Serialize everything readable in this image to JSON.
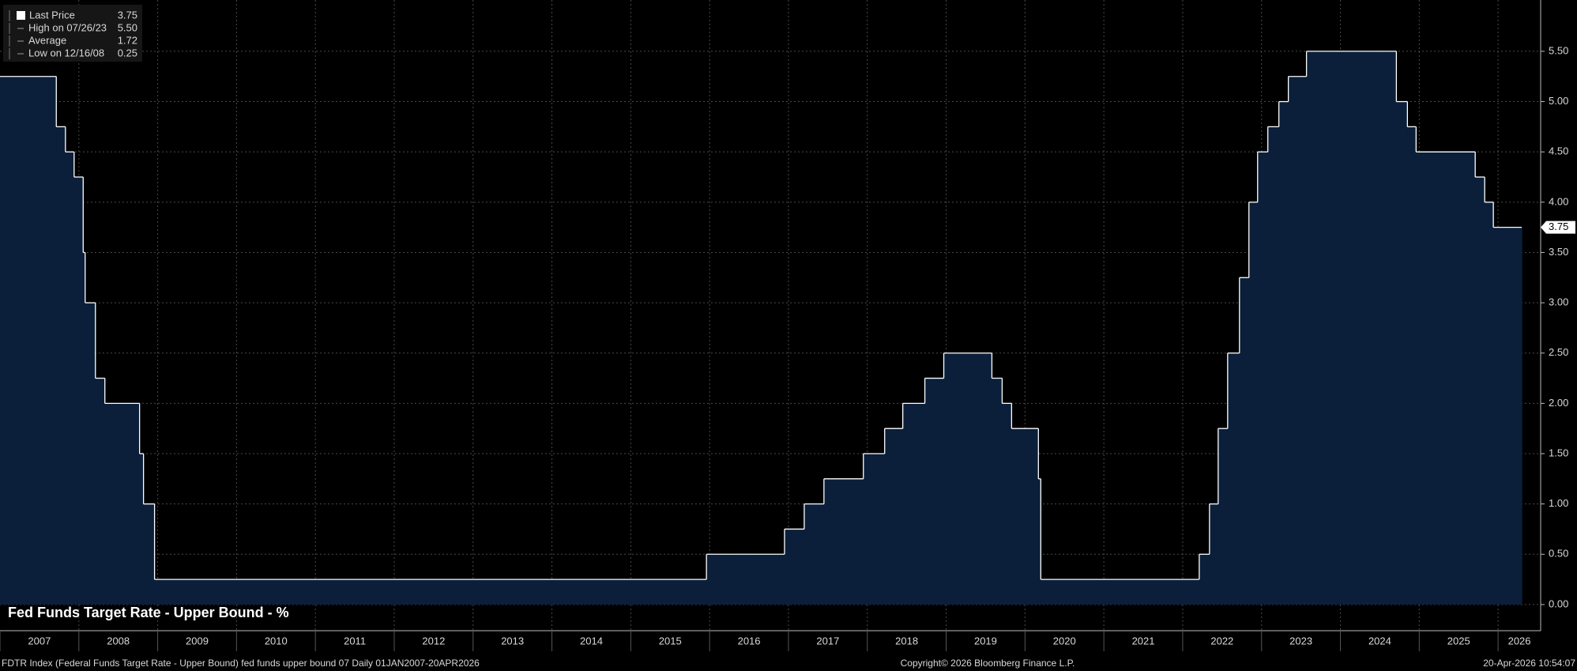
{
  "chart_data": {
    "type": "area",
    "step": "post",
    "title": "Fed Funds Target Rate - Upper Bound - %",
    "footer_left": "FDTR Index (Federal Funds Target Rate - Upper Bound) fed funds upper bound 07 Daily 01JAN2007-20APR2026",
    "footer_center": "Copyright© 2026 Bloomberg Finance L.P.",
    "footer_right": "20-Apr-2026 10:54:07",
    "legend": [
      {
        "label": "Last Price",
        "value": "3.75"
      },
      {
        "label": "High on 07/26/23",
        "value": "5.50"
      },
      {
        "label": "Average",
        "value": "1.72"
      },
      {
        "label": "Low on 12/16/08",
        "value": "0.25"
      }
    ],
    "series": [
      {
        "name": "Last Price",
        "color": "#ffffff",
        "fill": "#0b1f3a",
        "x": [
          2007.0,
          2007.714,
          2007.83,
          2007.94,
          2008.055,
          2008.08,
          2008.21,
          2008.33,
          2008.77,
          2008.82,
          2008.96,
          2015.96,
          2016.95,
          2017.2,
          2017.45,
          2017.95,
          2018.22,
          2018.45,
          2018.73,
          2018.97,
          2019.58,
          2019.71,
          2019.83,
          2020.17,
          2020.2,
          2022.21,
          2022.34,
          2022.45,
          2022.57,
          2022.72,
          2022.84,
          2022.95,
          2023.08,
          2023.22,
          2023.34,
          2023.57,
          2024.71,
          2024.85,
          2024.96,
          2025.71,
          2025.83,
          2025.94,
          2026.3
        ],
        "values": [
          5.25,
          4.75,
          4.5,
          4.25,
          3.5,
          3.0,
          2.25,
          2.0,
          1.5,
          1.0,
          0.25,
          0.5,
          0.75,
          1.0,
          1.25,
          1.5,
          1.75,
          2.0,
          2.25,
          2.5,
          2.25,
          2.0,
          1.75,
          1.25,
          0.25,
          0.5,
          1.0,
          1.75,
          2.5,
          3.25,
          4.0,
          4.5,
          4.75,
          5.0,
          5.25,
          5.5,
          5.0,
          4.75,
          4.5,
          4.25,
          4.0,
          3.75,
          3.75
        ]
      }
    ],
    "xlim": [
      2007,
      2026.54
    ],
    "xticks": [
      2007,
      2008,
      2009,
      2010,
      2011,
      2012,
      2013,
      2014,
      2015,
      2016,
      2017,
      2018,
      2019,
      2020,
      2021,
      2022,
      2023,
      2024,
      2025,
      2026
    ],
    "ylim": [
      -0.26,
      6.01
    ],
    "yticks": [
      {
        "value": 0,
        "label": "0.00"
      },
      {
        "value": 0.5,
        "label": "0.50"
      },
      {
        "value": 1,
        "label": "1.00"
      },
      {
        "value": 1.5,
        "label": "1.50"
      },
      {
        "value": 2,
        "label": "2.00"
      },
      {
        "value": 2.5,
        "label": "2.50"
      },
      {
        "value": 3,
        "label": "3.00"
      },
      {
        "value": 3.5,
        "label": "3.50"
      },
      {
        "value": 4,
        "label": "4.00"
      },
      {
        "value": 4.5,
        "label": "4.50"
      },
      {
        "value": 5,
        "label": "5.00"
      },
      {
        "value": 5.5,
        "label": "5.50"
      }
    ],
    "grid": true
  }
}
